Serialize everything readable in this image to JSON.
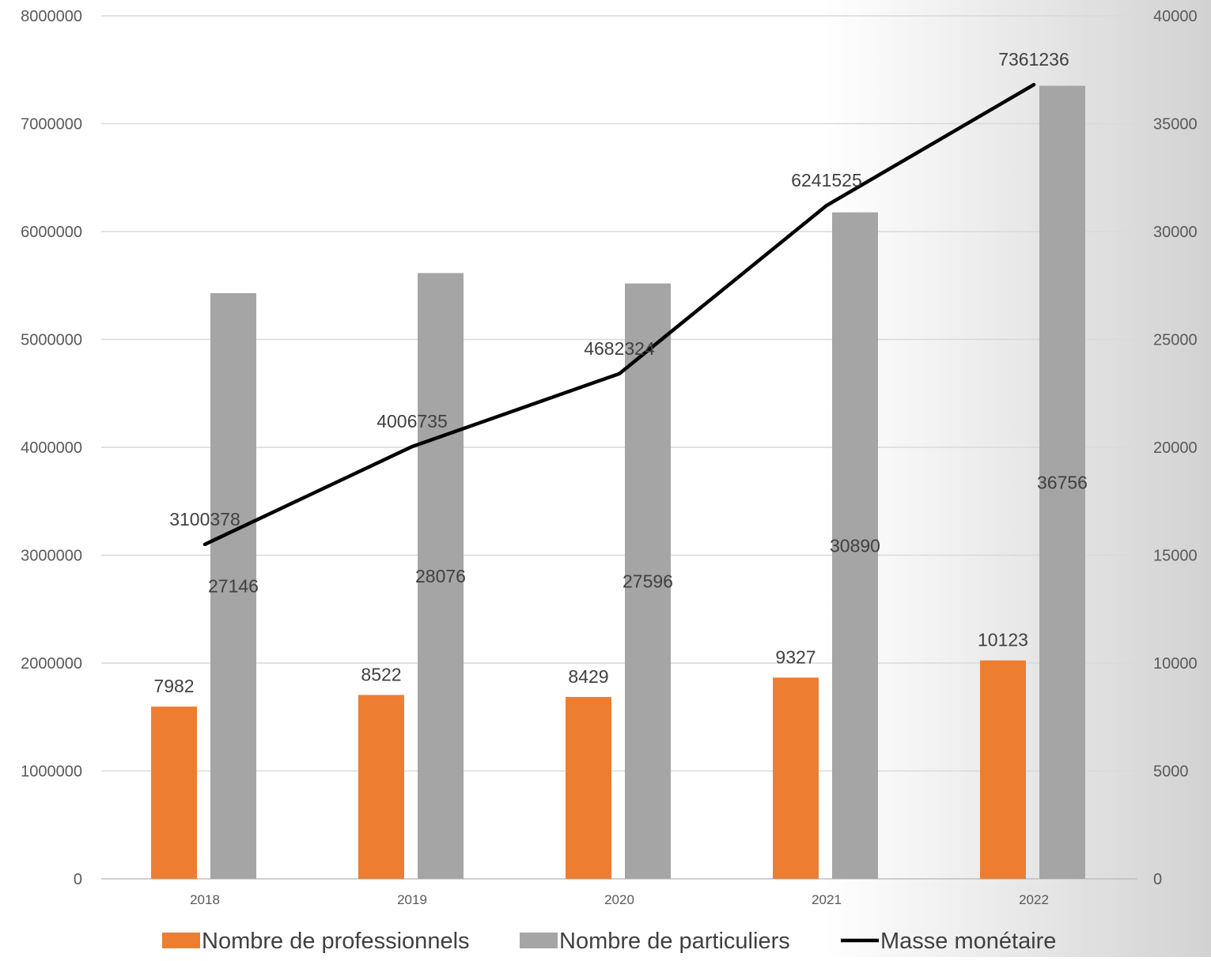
{
  "chart_data": {
    "type": "bar",
    "categories": [
      "2018",
      "2019",
      "2020",
      "2021",
      "2022"
    ],
    "series": [
      {
        "name": "Nombre de professionnels",
        "type": "bar",
        "axis": "right",
        "color": "#ED7D31",
        "values": [
          7982,
          8522,
          8429,
          9327,
          10123
        ]
      },
      {
        "name": "Nombre de particuliers",
        "type": "bar",
        "axis": "right",
        "color": "#A5A5A5",
        "values": [
          27146,
          28076,
          27596,
          30890,
          36756
        ]
      },
      {
        "name": "Masse monétaire",
        "type": "line",
        "axis": "left",
        "color": "#000000",
        "values": [
          3100378,
          4006735,
          4682324,
          6241525,
          7361236
        ]
      }
    ],
    "y_left": {
      "min": 0,
      "max": 8000000,
      "ticks": [
        "0",
        "1000000",
        "2000000",
        "3000000",
        "4000000",
        "5000000",
        "6000000",
        "7000000",
        "8000000"
      ]
    },
    "y_right": {
      "min": 0,
      "max": 40000,
      "ticks": [
        "0",
        "5000",
        "10000",
        "15000",
        "20000",
        "25000",
        "30000",
        "35000",
        "40000"
      ]
    },
    "grid": true,
    "legend": "bottom"
  }
}
